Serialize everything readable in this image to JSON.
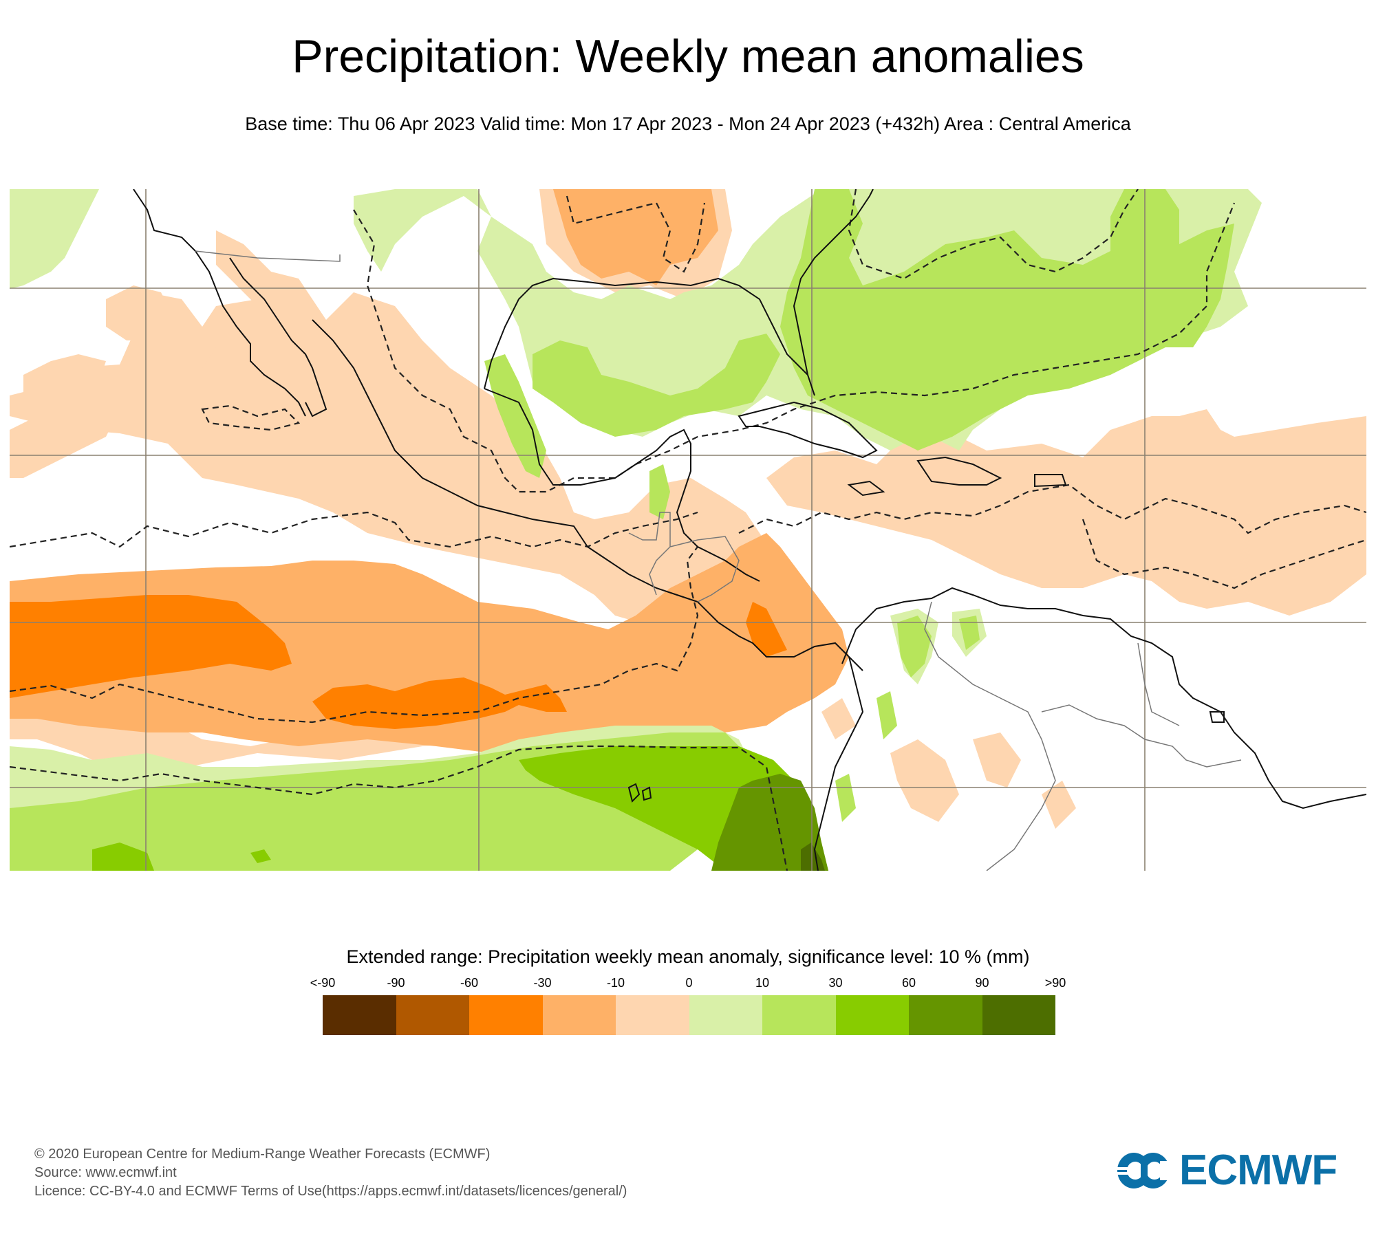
{
  "header": {
    "title": "Precipitation: Weekly mean anomalies",
    "subtitle": "Base time: Thu 06 Apr 2023 Valid time: Mon 17 Apr 2023 - Mon 24 Apr 2023 (+432h) Area : Central America"
  },
  "map": {
    "area": "Central America",
    "significance_contour": "dashed",
    "colors": {
      "lt_m90": "#5a2d00",
      "m90_m60": "#b05800",
      "m60_m30": "#ff8000",
      "m30_m10": "#feb167",
      "m10_0": "#fed6b0",
      "0_10": "#d9f0a8",
      "10_30": "#b7e55b",
      "30_60": "#88cc00",
      "60_90": "#659500",
      "gt_90": "#4d6e00",
      "coast": "#111111",
      "border": "#777777",
      "grid": "#8a8070"
    }
  },
  "legend": {
    "title": "Extended range: Precipitation weekly mean anomaly, significance level: 10 % (mm)",
    "ticks": [
      "<-90",
      "-90",
      "-60",
      "-30",
      "-10",
      "0",
      "10",
      "30",
      "60",
      "90",
      ">90"
    ],
    "colors": [
      "#5a2d00",
      "#b05800",
      "#ff8000",
      "#feb167",
      "#fed6b0",
      "#d9f0a8",
      "#b7e55b",
      "#88cc00",
      "#659500",
      "#4d6e00"
    ]
  },
  "footer": {
    "copyright": "© 2020 European Centre for Medium-Range Weather Forecasts (ECMWF)",
    "source": "Source: www.ecmwf.int",
    "licence": "Licence: CC-BY-4.0 and ECMWF Terms of Use(https://apps.ecmwf.int/datasets/licences/general/)"
  },
  "logo": {
    "text": "ECMWF",
    "color": "#0b70a8"
  }
}
